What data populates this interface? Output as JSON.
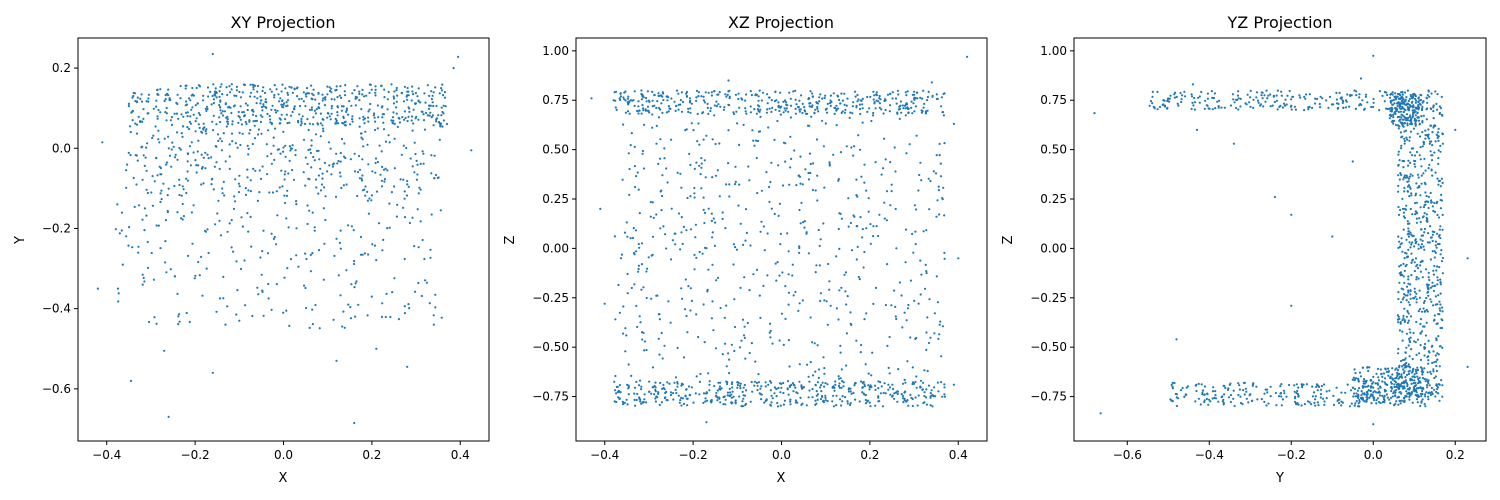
{
  "chart_data": [
    {
      "type": "scatter",
      "title": "XY Projection",
      "xlabel": "X",
      "ylabel": "Y",
      "xlim": [
        -0.465,
        0.465
      ],
      "ylim": [
        -0.73,
        0.275
      ],
      "xticks": [
        -0.4,
        -0.2,
        0.0,
        0.2,
        0.4
      ],
      "xtick_labels": [
        "−0.4",
        "−0.2",
        "0.0",
        "0.2",
        "0.4"
      ],
      "yticks": [
        -0.6,
        -0.4,
        -0.2,
        0.0,
        0.2
      ],
      "ytick_labels": [
        "−0.6",
        "−0.4",
        "−0.2",
        "0.0",
        "0.2"
      ],
      "marker_color": "#1f77b4",
      "clusters": [
        {
          "x": [
            -0.35,
            0.37
          ],
          "y": [
            0.06,
            0.16
          ],
          "n": 560
        },
        {
          "x": [
            -0.36,
            0.36
          ],
          "y": [
            -0.12,
            0.06
          ],
          "n": 380
        },
        {
          "x": [
            -0.38,
            0.36
          ],
          "y": [
            -0.45,
            -0.12
          ],
          "n": 250
        }
      ],
      "points": [
        {
          "x": -0.42,
          "y": -0.35
        },
        {
          "x": -0.41,
          "y": 0.015
        },
        {
          "x": -0.345,
          "y": -0.58
        },
        {
          "x": -0.26,
          "y": -0.67
        },
        {
          "x": 0.16,
          "y": -0.685
        },
        {
          "x": -0.16,
          "y": 0.235
        },
        {
          "x": 0.395,
          "y": 0.228
        },
        {
          "x": 0.385,
          "y": 0.2
        },
        {
          "x": 0.425,
          "y": -0.005
        },
        {
          "x": -0.16,
          "y": -0.56
        },
        {
          "x": -0.27,
          "y": -0.505
        },
        {
          "x": 0.12,
          "y": -0.53
        },
        {
          "x": 0.21,
          "y": -0.5
        },
        {
          "x": 0.28,
          "y": -0.545
        },
        {
          "x": -0.1,
          "y": -0.43
        },
        {
          "x": 0.34,
          "y": -0.44
        }
      ]
    },
    {
      "type": "scatter",
      "title": "XZ Projection",
      "xlabel": "X",
      "ylabel": "Z",
      "xlim": [
        -0.465,
        0.465
      ],
      "ylim": [
        -0.975,
        1.065
      ],
      "xticks": [
        -0.4,
        -0.2,
        0.0,
        0.2,
        0.4
      ],
      "xtick_labels": [
        "−0.4",
        "−0.2",
        "0.0",
        "0.2",
        "0.4"
      ],
      "yticks": [
        -0.75,
        -0.5,
        -0.25,
        0.0,
        0.25,
        0.5,
        0.75,
        1.0
      ],
      "ytick_labels": [
        "−0.75",
        "−0.50",
        "−0.25",
        "0.00",
        "0.25",
        "0.50",
        "0.75",
        "1.00"
      ],
      "marker_color": "#1f77b4",
      "clusters": [
        {
          "x": [
            -0.38,
            0.37
          ],
          "y": [
            0.68,
            0.8
          ],
          "n": 430
        },
        {
          "x": [
            -0.38,
            0.37
          ],
          "y": [
            -0.8,
            -0.67
          ],
          "n": 460
        },
        {
          "x": [
            -0.38,
            0.37
          ],
          "y": [
            -0.67,
            0.68
          ],
          "n": 620
        }
      ],
      "points": [
        {
          "x": 0.42,
          "y": 0.97
        },
        {
          "x": -0.43,
          "y": 0.76
        },
        {
          "x": -0.41,
          "y": 0.2
        },
        {
          "x": -0.4,
          "y": -0.28
        },
        {
          "x": -0.17,
          "y": -0.88
        },
        {
          "x": 0.39,
          "y": 0.63
        },
        {
          "x": 0.4,
          "y": -0.05
        },
        {
          "x": 0.39,
          "y": -0.69
        },
        {
          "x": -0.12,
          "y": 0.85
        },
        {
          "x": 0.34,
          "y": 0.84
        }
      ]
    },
    {
      "type": "scatter",
      "title": "YZ Projection",
      "xlabel": "Y",
      "ylabel": "Z",
      "xlim": [
        -0.73,
        0.275
      ],
      "ylim": [
        -0.975,
        1.065
      ],
      "xticks": [
        -0.6,
        -0.4,
        -0.2,
        0.0,
        0.2
      ],
      "xtick_labels": [
        "−0.6",
        "−0.4",
        "−0.2",
        "0.0",
        "0.2"
      ],
      "yticks": [
        -0.75,
        -0.5,
        -0.25,
        0.0,
        0.25,
        0.5,
        0.75,
        1.0
      ],
      "ytick_labels": [
        "−0.75",
        "−0.50",
        "−0.25",
        "0.00",
        "0.25",
        "0.50",
        "0.75",
        "1.00"
      ],
      "marker_color": "#1f77b4",
      "clusters": [
        {
          "x": [
            -0.55,
            0.17
          ],
          "y": [
            0.7,
            0.8
          ],
          "n": 280
        },
        {
          "x": [
            0.06,
            0.17
          ],
          "y": [
            -0.75,
            0.75
          ],
          "n": 650
        },
        {
          "x": [
            -0.5,
            0.17
          ],
          "y": [
            -0.8,
            -0.68
          ],
          "n": 300
        },
        {
          "x": [
            -0.05,
            0.12
          ],
          "y": [
            -0.78,
            -0.6
          ],
          "n": 220
        },
        {
          "x": [
            0.04,
            0.12
          ],
          "y": [
            0.62,
            0.78
          ],
          "n": 160
        }
      ],
      "points": [
        {
          "x": -0.68,
          "y": 0.685
        },
        {
          "x": -0.665,
          "y": -0.835
        },
        {
          "x": 0.0,
          "y": 0.975
        },
        {
          "x": 0.23,
          "y": -0.05
        },
        {
          "x": 0.23,
          "y": -0.6
        },
        {
          "x": 0.2,
          "y": 0.6
        },
        {
          "x": -0.48,
          "y": -0.46
        },
        {
          "x": -0.24,
          "y": 0.26
        },
        {
          "x": -0.2,
          "y": 0.17
        },
        {
          "x": -0.05,
          "y": 0.44
        },
        {
          "x": -0.1,
          "y": 0.06
        },
        {
          "x": -0.2,
          "y": -0.29
        },
        {
          "x": -0.34,
          "y": 0.53
        },
        {
          "x": -0.43,
          "y": 0.6
        },
        {
          "x": 0.0,
          "y": -0.89
        },
        {
          "x": -0.44,
          "y": 0.83
        },
        {
          "x": -0.03,
          "y": 0.86
        }
      ]
    }
  ]
}
